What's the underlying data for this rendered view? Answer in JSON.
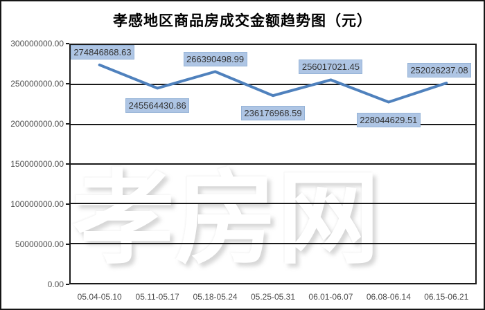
{
  "title": "孝感地区商品房成交金额趋势图（元）",
  "watermark": "孝房网",
  "chart_data": {
    "type": "line",
    "title": "孝感地区商品房成交金额趋势图（元）",
    "categories": [
      "05.04-05.10",
      "05.11-05.17",
      "05.18-05.24",
      "05.25-05.31",
      "06.01-06.07",
      "06.08-06.14",
      "06.15-06.21"
    ],
    "values": [
      274846868.63,
      245564430.86,
      266390498.99,
      236176968.59,
      256017021.45,
      228044629.51,
      252026237.08
    ],
    "data_labels": [
      "274846868.63",
      "245564430.86",
      "266390498.99",
      "236176968.59",
      "256017021.45",
      "228044629.51",
      "252026237.08"
    ],
    "xlabel": "",
    "ylabel": "",
    "ylim": [
      0,
      300000000
    ],
    "y_tick_labels": [
      "300000000.00",
      "250000000.00",
      "200000000.00",
      "150000000.00",
      "100000000.00",
      "50000000.00",
      "0.00"
    ],
    "grid": true,
    "legend": false,
    "line_color": "#4f81bd",
    "label_fill_color": "#aec5e4",
    "label_border_color": "#95b3d7",
    "grid_color": "#1a1a1a",
    "axis_text_color": "#4d4d4d"
  }
}
